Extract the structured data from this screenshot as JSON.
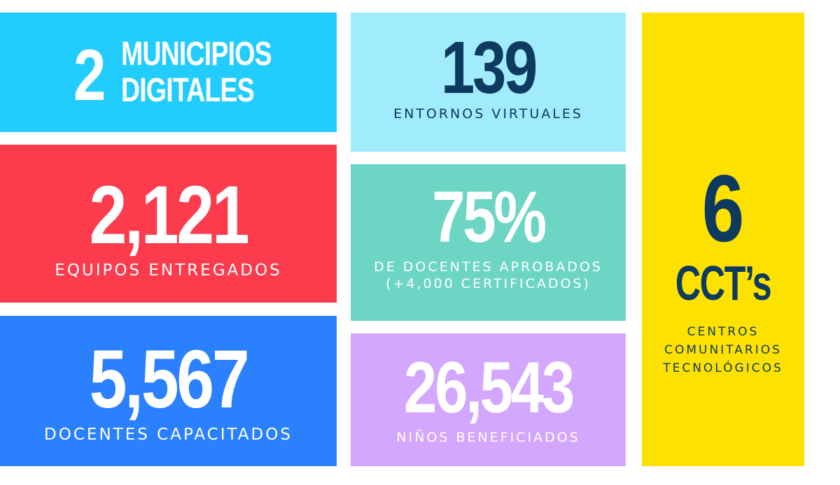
{
  "tiles": {
    "municipios": {
      "number": "2",
      "label_line1": "MUNICIPIOS",
      "label_line2": "DIGITALES",
      "color": "#22cdfe"
    },
    "equipos": {
      "number": "2,121",
      "caption": "EQUIPOS ENTREGADOS",
      "color": "#fc3b4d"
    },
    "docentes": {
      "number": "5,567",
      "caption": "DOCENTES CAPACITADOS",
      "color": "#2b80fd"
    },
    "entornos": {
      "number": "139",
      "caption": "ENTORNOS VIRTUALES",
      "color": "#a0ebfc"
    },
    "porcentaje": {
      "number": "75%",
      "caption_line1": "DE DOCENTES APROBADOS",
      "caption_line2": "(+4,000 CERTIFICADOS)",
      "color": "#6dd5c4"
    },
    "ninos": {
      "number": "26,543",
      "caption": "NIÑOS BENEFICIADOS",
      "color": "#d4a7fe"
    },
    "cct": {
      "number": "6",
      "subtitle": "CCT’s",
      "caption_line1": "CENTROS",
      "caption_line2": "COMUNITARIOS",
      "caption_line3": "TECNOLÓGICOS",
      "color": "#fde100"
    }
  },
  "text_colors": {
    "dark": "#0d3a5e",
    "light": "#ffffff"
  }
}
